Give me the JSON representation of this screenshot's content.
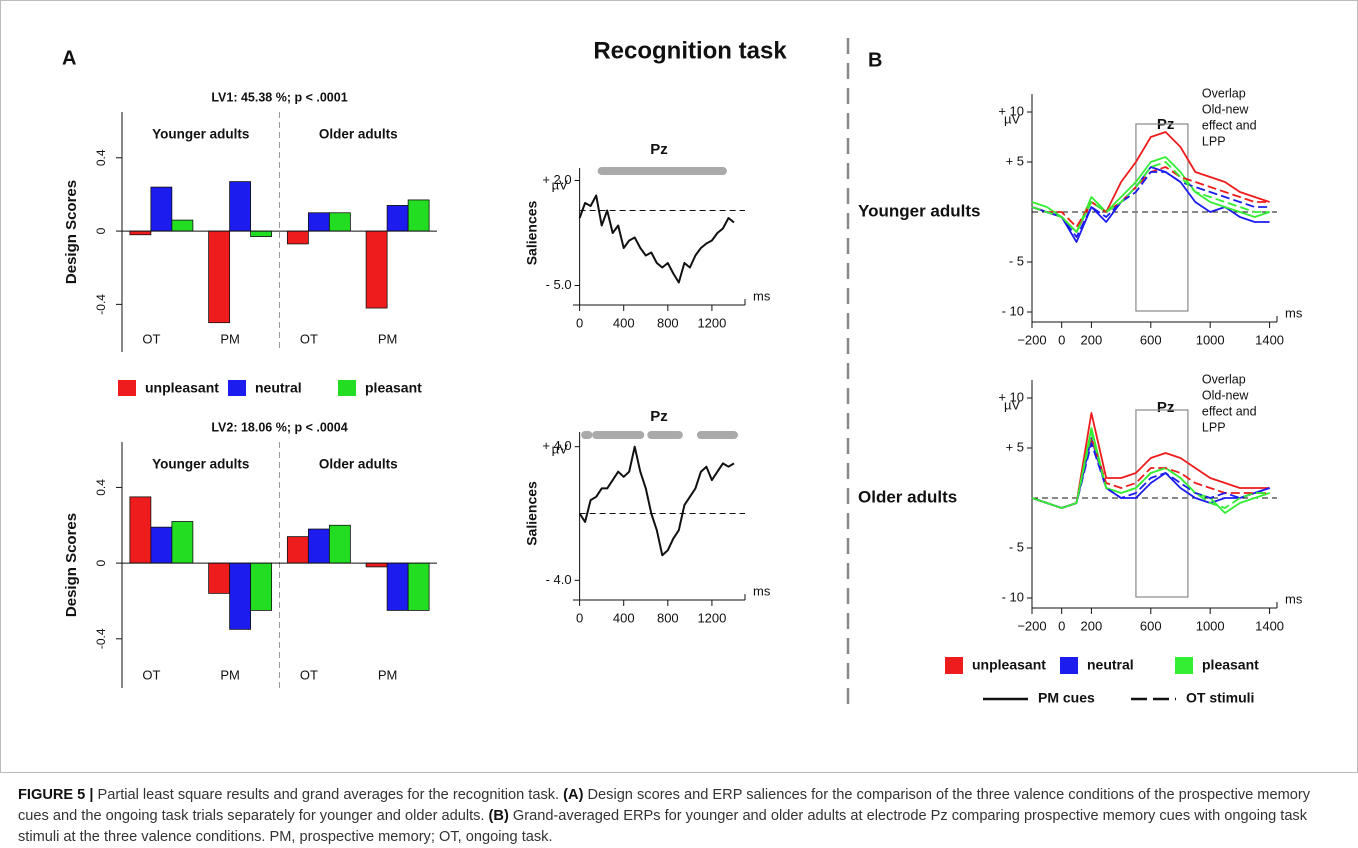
{
  "figure": {
    "title": "Recognition task",
    "panel_a": "A",
    "panel_b": "B",
    "legend_b": {
      "conditions": [
        {
          "name": "unpleasant",
          "color": "#ee1c1c"
        },
        {
          "name": "neutral",
          "color": "#1c1cee"
        },
        {
          "name": "pleasant",
          "color": "#33ee33"
        }
      ],
      "styles": [
        {
          "name": "PM cues",
          "dash": false
        },
        {
          "name": "OT stimuli",
          "dash": true
        }
      ]
    },
    "caption": [
      "FIGURE 5 |",
      "Partial least square results and grand averages for the recognition task.",
      "(A)",
      "Design scores and ERP saliences for the comparison of the three valence conditions of the prospective memory cues and the ongoing task trials separately for younger and older adults.",
      "(B)",
      "Grand-averaged ERPs for younger and older adults at electrode Pz comparing prospective memory cues with ongoing task stimuli at the three valence conditions. PM, prospective memory; OT, ongoing task."
    ]
  },
  "chart_data": [
    {
      "type": "bar",
      "title": "LV1: 45.38 %; p < .0001",
      "y_label": "Design Scores",
      "group_labels": [
        "Younger adults",
        "Older adults"
      ],
      "categories": [
        "OT",
        "PM",
        "OT",
        "PM"
      ],
      "series": [
        {
          "name": "unpleasant",
          "color": "#ee1c1c",
          "values": [
            -0.02,
            -0.5,
            -0.07,
            -0.42
          ]
        },
        {
          "name": "neutral",
          "color": "#1c1cee",
          "values": [
            0.24,
            0.27,
            0.1,
            0.14
          ]
        },
        {
          "name": "pleasant",
          "color": "#22dd22",
          "values": [
            0.06,
            -0.03,
            0.1,
            0.17
          ]
        }
      ],
      "ylim": [
        -0.66,
        0.65
      ],
      "yticks": [
        -0.4,
        0,
        0.4
      ]
    },
    {
      "type": "bar",
      "title": "LV2: 18.06 %; p < .0004",
      "y_label": "Design Scores",
      "group_labels": [
        "Younger adults",
        "Older adults"
      ],
      "categories": [
        "OT",
        "PM",
        "OT",
        "PM"
      ],
      "series": [
        {
          "color": "#ee1c1c",
          "values": [
            0.35,
            -0.16,
            0.14,
            -0.02
          ]
        },
        {
          "color": "#1c1cee",
          "values": [
            0.19,
            -0.35,
            0.18,
            -0.25
          ]
        },
        {
          "color": "#22dd22",
          "values": [
            0.22,
            -0.25,
            0.2,
            -0.25
          ]
        }
      ],
      "ylim": [
        -0.66,
        0.64
      ],
      "yticks": [
        -0.4,
        0,
        0.4
      ]
    },
    {
      "type": "salience",
      "title": "Pz",
      "y_label": "Saliences",
      "unit": "µV",
      "x_label": "ms",
      "color": "#111111",
      "x": [
        0,
        50,
        100,
        150,
        200,
        250,
        300,
        350,
        400,
        450,
        500,
        550,
        600,
        650,
        700,
        750,
        800,
        850,
        900,
        950,
        1000,
        1050,
        1100,
        1150,
        1200,
        1250,
        1300,
        1350,
        1400
      ],
      "values": [
        -0.5,
        0.5,
        0.3,
        1,
        -1,
        0,
        -1.5,
        -1,
        -2.5,
        -2,
        -1.8,
        -2.5,
        -3,
        -2.8,
        -3.5,
        -3.8,
        -3.5,
        -4.2,
        -4.8,
        -3.5,
        -3.8,
        -3,
        -2.5,
        -2.2,
        -2,
        -1.5,
        -1.2,
        -0.5,
        -0.8
      ],
      "significant_ranges": [
        [
          200,
          1300
        ]
      ],
      "hline": 0,
      "xlim": [
        -60,
        1500
      ],
      "xticks": [
        0,
        400,
        800,
        1200
      ],
      "ylim": [
        -5.3,
        2.3
      ],
      "yticks": [
        {
          "value": -5,
          "label": "- 5.0"
        },
        {
          "value": 2,
          "label": "+ 2.0"
        }
      ]
    },
    {
      "type": "salience",
      "title": "Pz",
      "y_label": "Saliences",
      "unit": "µV",
      "x_label": "ms",
      "color": "#111111",
      "x": [
        0,
        50,
        100,
        150,
        200,
        250,
        300,
        350,
        400,
        450,
        500,
        550,
        600,
        650,
        700,
        750,
        800,
        850,
        900,
        950,
        1000,
        1050,
        1100,
        1150,
        1200,
        1250,
        1300,
        1350,
        1400
      ],
      "values": [
        0,
        -0.5,
        0.8,
        1,
        1.5,
        1.5,
        2,
        2.5,
        2.2,
        2.5,
        4,
        2.5,
        1.5,
        0,
        -1,
        -2.5,
        -2.2,
        -1.5,
        -1,
        0.5,
        1,
        1.5,
        2.5,
        2.8,
        2,
        2.5,
        3,
        2.8,
        3
      ],
      "significant_ranges": [
        [
          50,
          80
        ],
        [
          150,
          550
        ],
        [
          650,
          900
        ],
        [
          1100,
          1400
        ]
      ],
      "hline": 0,
      "xlim": [
        -60,
        1500
      ],
      "xticks": [
        0,
        400,
        800,
        1200
      ],
      "ylim": [
        -4.4,
        4.4
      ],
      "yticks": [
        {
          "value": -4,
          "label": "- 4.0"
        },
        {
          "value": 4,
          "label": "+ 4.0"
        }
      ]
    },
    {
      "type": "erp",
      "title": "Pz",
      "row_label": "Younger adults",
      "unit": "µV",
      "x_label": "ms",
      "annotation": [
        "Overlap",
        "Old-new",
        "effect and",
        "LPP"
      ],
      "window": [
        500,
        850
      ],
      "hline": 0,
      "x": [
        -200,
        -100,
        0,
        100,
        200,
        300,
        400,
        500,
        600,
        700,
        800,
        900,
        1000,
        1100,
        1200,
        1300,
        1400
      ],
      "series": [
        {
          "color": "#ee1c1c",
          "dash": false,
          "values": [
            0.5,
            0,
            -0.5,
            -2,
            1,
            0,
            3,
            5,
            7.5,
            8,
            6.5,
            4,
            3.5,
            3,
            2,
            1.5,
            1
          ]
        },
        {
          "color": "#1c1cee",
          "dash": false,
          "values": [
            0.5,
            0,
            -0.5,
            -3,
            0.5,
            -1,
            1,
            2.5,
            4.5,
            4,
            3,
            1,
            0,
            0.5,
            -0.5,
            -1,
            -1
          ]
        },
        {
          "color": "#33ee33",
          "dash": false,
          "values": [
            1,
            0.5,
            -0.5,
            -2,
            1.5,
            0,
            1.5,
            3,
            5,
            5.5,
            4,
            2,
            1,
            0.5,
            0,
            -0.5,
            0
          ]
        },
        {
          "color": "#ee1c1c",
          "dash": true,
          "values": [
            0.5,
            0,
            0,
            -1.5,
            1,
            0,
            1,
            2.5,
            4,
            4.5,
            3.5,
            3,
            2.5,
            2,
            1.5,
            1,
            1
          ]
        },
        {
          "color": "#1c1cee",
          "dash": true,
          "values": [
            0.5,
            0,
            -0.5,
            -2.5,
            0.5,
            -0.5,
            1,
            2,
            4,
            4,
            3,
            2.5,
            2,
            1.5,
            1,
            0.5,
            0.5
          ]
        },
        {
          "color": "#33ee33",
          "dash": true,
          "values": [
            0.5,
            0,
            -0.5,
            -2,
            1,
            0,
            1,
            2.5,
            4.5,
            5,
            3.5,
            2,
            1.5,
            1,
            0.5,
            0,
            0
          ]
        }
      ],
      "xlim": [
        -200,
        1450
      ],
      "xticks": [
        {
          "value": -200,
          "label": "−200"
        },
        0,
        200,
        600,
        1000,
        1400
      ],
      "ylim": [
        -11,
        11
      ],
      "yticks": [
        {
          "value": -10,
          "label": "- 10"
        },
        {
          "value": -5,
          "label": "- 5"
        },
        {
          "value": 5,
          "label": "+ 5"
        },
        {
          "value": 10,
          "label": "+ 10"
        }
      ]
    },
    {
      "type": "erp",
      "title": "Pz",
      "row_label": "Older adults",
      "unit": "µV",
      "x_label": "ms",
      "annotation": [
        "Overlap",
        "Old-new",
        "effect and",
        "LPP"
      ],
      "window": [
        500,
        850
      ],
      "hline": 0,
      "x": [
        -200,
        -100,
        0,
        100,
        200,
        300,
        400,
        500,
        600,
        700,
        800,
        900,
        1000,
        1100,
        1200,
        1300,
        1400
      ],
      "series": [
        {
          "color": "#ee1c1c",
          "dash": false,
          "values": [
            0,
            -0.5,
            -1,
            -0.5,
            8.5,
            2,
            2,
            2.5,
            4,
            4.5,
            4,
            3,
            2,
            1.5,
            1,
            1,
            1
          ]
        },
        {
          "color": "#1c1cee",
          "dash": false,
          "values": [
            0,
            -0.5,
            -1,
            -0.5,
            6,
            1,
            0,
            0,
            1.5,
            2.5,
            1,
            0,
            -0.5,
            0,
            0,
            0.5,
            1
          ]
        },
        {
          "color": "#33ee33",
          "dash": false,
          "values": [
            0,
            -0.5,
            -1,
            -0.5,
            7,
            1,
            0.5,
            1,
            2.5,
            3,
            2,
            0.5,
            0,
            -1.5,
            -0.5,
            0,
            0.5
          ]
        },
        {
          "color": "#ee1c1c",
          "dash": true,
          "values": [
            0,
            -0.5,
            -1,
            -0.5,
            6,
            1.5,
            1,
            1.5,
            3,
            3,
            2.5,
            1.5,
            1,
            0.5,
            0.5,
            0.5,
            0.5
          ]
        },
        {
          "color": "#1c1cee",
          "dash": true,
          "values": [
            0,
            -0.5,
            -1,
            -0.5,
            5.5,
            1,
            0,
            0.5,
            2,
            2.5,
            1.5,
            0.5,
            0,
            0.5,
            0,
            0.5,
            1
          ]
        },
        {
          "color": "#33ee33",
          "dash": true,
          "values": [
            0,
            -0.5,
            -1,
            -0.5,
            6.5,
            1,
            0.5,
            1,
            2.5,
            3,
            2,
            0.5,
            -0.5,
            -1,
            0,
            0.5,
            0.5
          ]
        }
      ],
      "xlim": [
        -200,
        1450
      ],
      "xticks": [
        {
          "value": -200,
          "label": "−200"
        },
        0,
        200,
        600,
        1000,
        1400
      ],
      "ylim": [
        -11,
        11
      ],
      "yticks": [
        {
          "value": -10,
          "label": "- 10"
        },
        {
          "value": -5,
          "label": "- 5"
        },
        {
          "value": 5,
          "label": "+ 5"
        },
        {
          "value": 10,
          "label": "+ 10"
        }
      ]
    }
  ]
}
